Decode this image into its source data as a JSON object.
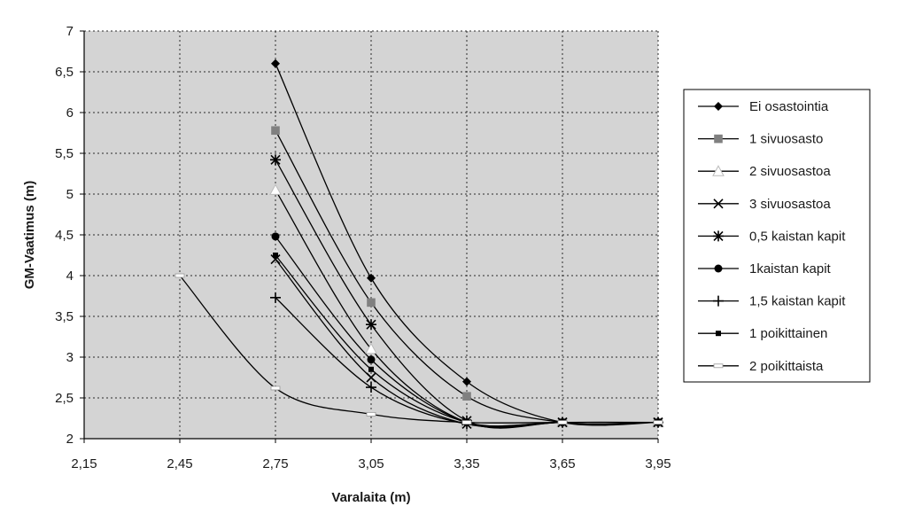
{
  "chart_data": {
    "type": "line",
    "title": "",
    "xlabel": "Varalaita (m)",
    "ylabel": "GM-Vaatimus (m)",
    "xlim": [
      2.15,
      3.95
    ],
    "ylim": [
      2,
      7
    ],
    "x_ticks": [
      "2,15",
      "2,45",
      "2,75",
      "3,05",
      "3,35",
      "3,65",
      "3,95"
    ],
    "x_tick_values": [
      2.15,
      2.45,
      2.75,
      3.05,
      3.35,
      3.65,
      3.95
    ],
    "y_ticks": [
      "2",
      "2,5",
      "3",
      "3,5",
      "4",
      "4,5",
      "5",
      "5,5",
      "6",
      "6,5",
      "7"
    ],
    "y_tick_values": [
      2,
      2.5,
      3,
      3.5,
      4,
      4.5,
      5,
      5.5,
      6,
      6.5,
      7
    ],
    "grid": true,
    "legend_position": "right",
    "series": [
      {
        "name": "Ei osastointia",
        "marker": "diamond",
        "color": "#000000",
        "x": [
          2.75,
          3.05,
          3.35,
          3.65,
          3.95
        ],
        "y": [
          6.6,
          3.97,
          2.7,
          2.2,
          2.2
        ]
      },
      {
        "name": "1 sivuosasto",
        "marker": "square",
        "color": "#808080",
        "x": [
          2.75,
          3.05,
          3.35,
          3.65,
          3.95
        ],
        "y": [
          5.78,
          3.67,
          2.52,
          2.2,
          2.2
        ]
      },
      {
        "name": "2 sivuosastoa",
        "marker": "triangle",
        "color": "#ffffff",
        "x": [
          2.75,
          3.05,
          3.35,
          3.65,
          3.95
        ],
        "y": [
          5.05,
          3.1,
          2.2,
          2.2,
          2.2
        ]
      },
      {
        "name": "3 sivuosastoa",
        "marker": "x",
        "color": "#000000",
        "x": [
          2.75,
          3.05,
          3.35,
          3.65,
          3.95
        ],
        "y": [
          4.2,
          2.75,
          2.18,
          2.2,
          2.2
        ]
      },
      {
        "name": "0,5 kaistan kapit",
        "marker": "star",
        "color": "#000000",
        "x": [
          2.75,
          3.05,
          3.35,
          3.65,
          3.95
        ],
        "y": [
          5.42,
          3.4,
          2.22,
          2.2,
          2.2
        ]
      },
      {
        "name": "1kaistan kapit",
        "marker": "circle",
        "color": "#000000",
        "x": [
          2.75,
          3.05,
          3.35,
          3.65,
          3.95
        ],
        "y": [
          4.48,
          2.97,
          2.2,
          2.2,
          2.2
        ]
      },
      {
        "name": "1,5 kaistan kapit",
        "marker": "plus",
        "color": "#000000",
        "x": [
          2.75,
          3.05,
          3.35,
          3.65,
          3.95
        ],
        "y": [
          3.73,
          2.63,
          2.18,
          2.2,
          2.2
        ]
      },
      {
        "name": "1 poikittainen",
        "marker": "small-square",
        "color": "#000000",
        "x": [
          2.75,
          3.05,
          3.35,
          3.65,
          3.95
        ],
        "y": [
          4.25,
          2.85,
          2.2,
          2.2,
          2.2
        ]
      },
      {
        "name": "2 poikittaista",
        "marker": "dash",
        "color": "#ffffff",
        "x": [
          2.45,
          2.75,
          3.05,
          3.35,
          3.65,
          3.95
        ],
        "y": [
          4.0,
          2.62,
          2.3,
          2.2,
          2.2,
          2.2
        ]
      }
    ]
  }
}
